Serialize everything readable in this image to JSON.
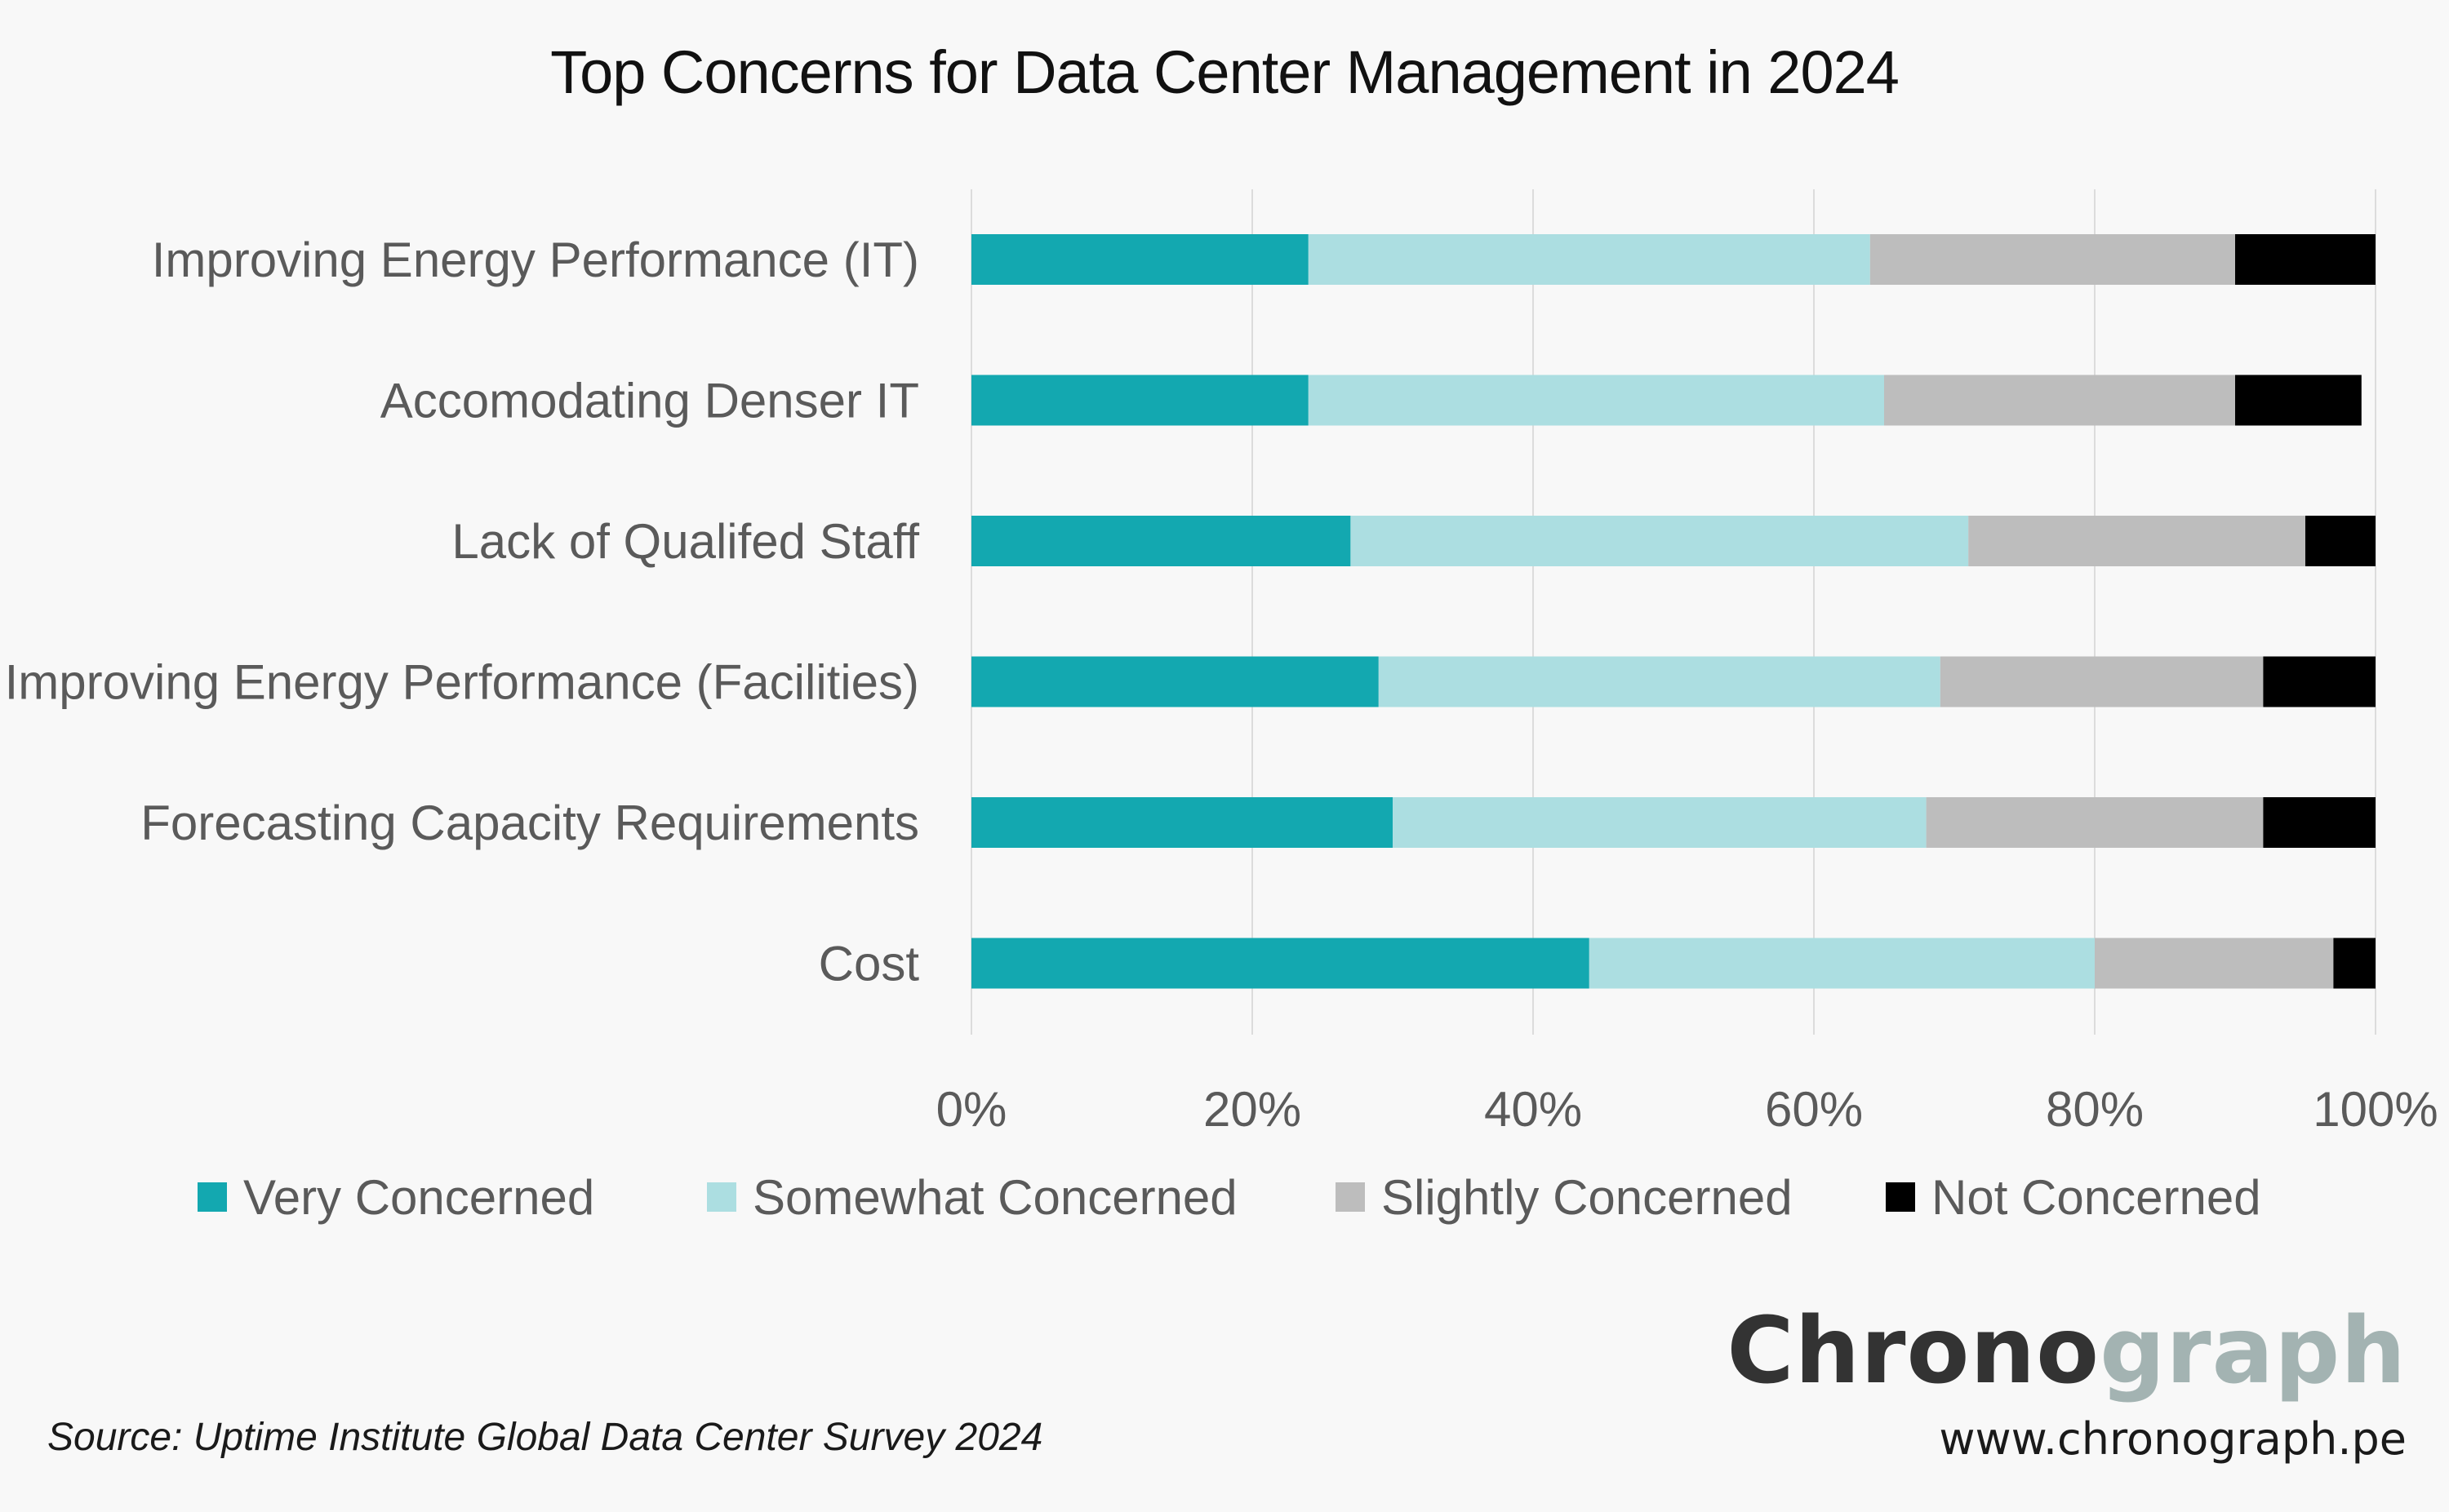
{
  "chart_data": {
    "type": "bar",
    "orientation": "horizontal",
    "stacked": true,
    "title": "Top Concerns for Data Center Management in 2024",
    "categories": [
      "Improving Energy Performance (IT)",
      "Accomodating Denser IT",
      "Lack of Qualifed Staff",
      "Improving Energy Performance (Facilities)",
      "Forecasting Capacity Requirements",
      "Cost"
    ],
    "series": [
      {
        "name": "Very Concerned",
        "color": "#13a8b0",
        "values": [
          24,
          24,
          27,
          29,
          30,
          44
        ]
      },
      {
        "name": "Somewhat Concerned",
        "color": "#acdee1",
        "values": [
          40,
          41,
          44,
          40,
          38,
          36
        ]
      },
      {
        "name": "Slightly Concerned",
        "color": "#bdbdbd",
        "values": [
          26,
          25,
          24,
          23,
          24,
          17
        ]
      },
      {
        "name": "Not Concerned",
        "color": "#000000",
        "values": [
          10,
          9,
          5,
          8,
          8,
          3
        ]
      }
    ],
    "xlim": [
      0,
      100
    ],
    "xticks": [
      "0%",
      "20%",
      "40%",
      "60%",
      "80%",
      "100%"
    ],
    "grid": true,
    "legend_position": "bottom"
  },
  "footer": {
    "source": "Source: Uptime Institute Global Data Center Survey 2024",
    "brand_dark": "Chrono",
    "brand_light": "graph",
    "url": "www.chronograph.pe"
  }
}
